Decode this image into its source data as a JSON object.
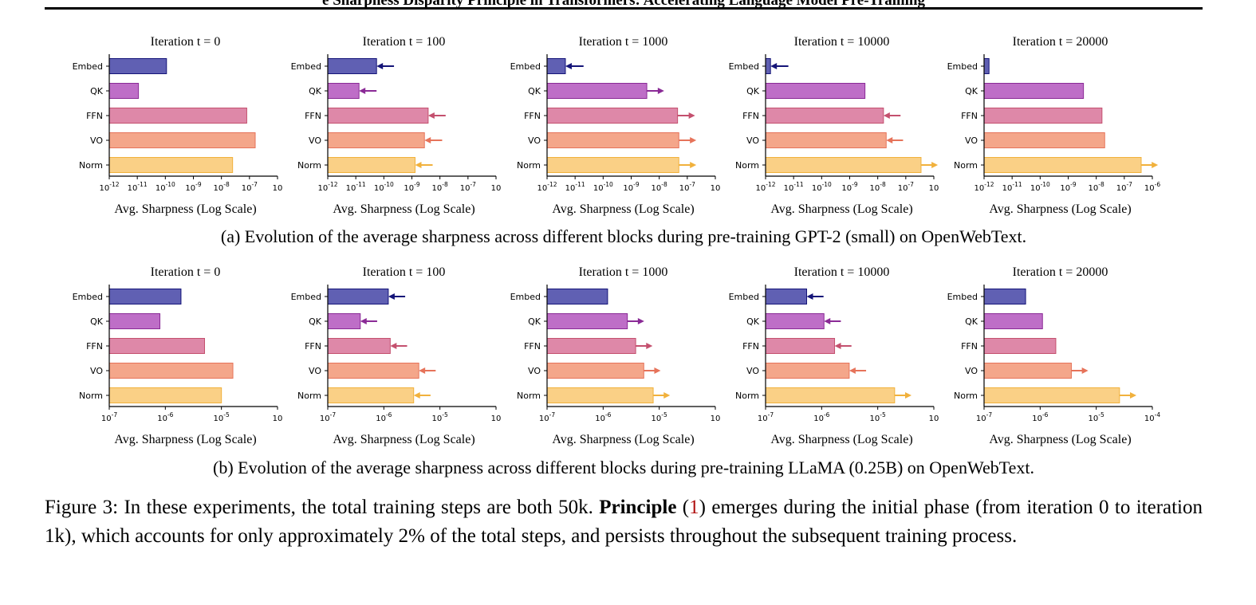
{
  "header": {
    "title_fragment": "e Sharpness Disparity Principle in Transformers: Accelerating Language Model Pre-Training"
  },
  "colors": {
    "Embed": "#4a4aa8",
    "QK": "#b55abf",
    "FFN": "#d9779c",
    "VO": "#f29a7a",
    "Norm": "#f9c975",
    "Embed_arrow": "#141478",
    "QK_arrow": "#8a2a96",
    "FFN_arrow": "#c4506e",
    "VO_arrow": "#e6735a",
    "Norm_arrow": "#f1b13c"
  },
  "captions": {
    "a": "(a) Evolution of the average sharpness across different blocks during pre-training GPT-2 (small) on OpenWebText.",
    "b": "(b) Evolution of the average sharpness across different blocks during pre-training LLaMA (0.25B) on OpenWebText.",
    "figure_label": "Figure 3:",
    "figure_text_1": " In these experiments, the total training steps are both 50k. ",
    "principle_bold": "Principle",
    "principle_open": " (",
    "principle_ref": "1",
    "figure_text_2": ") emerges during the initial phase (from iteration 0 to iteration 1k), which accounts for only approximately 2% of the total steps, and persists throughout the subsequent training process."
  },
  "chart_data": [
    {
      "type": "bar",
      "orientation": "horizontal",
      "row": "a",
      "col": 0,
      "title": "Iteration t = 0",
      "xlabel": "Avg. Sharpness (Log Scale)",
      "xscale": "log",
      "categories": [
        "Embed",
        "QK",
        "FFN",
        "VO",
        "Norm"
      ],
      "xlim_exp": [
        -12,
        -6
      ],
      "xtick_labels": [
        "10^-12",
        "10^-11",
        "10^-10",
        "10^-9",
        "10^-8",
        "10^-7",
        "10"
      ],
      "values": [
        1.1e-10,
        1.1e-11,
        8e-08,
        1.6e-07,
        2.5e-08
      ],
      "arrows": [
        null,
        null,
        null,
        null,
        null
      ]
    },
    {
      "type": "bar",
      "orientation": "horizontal",
      "row": "a",
      "col": 1,
      "title": "Iteration t = 100",
      "xlabel": "Avg. Sharpness (Log Scale)",
      "xscale": "log",
      "categories": [
        "Embed",
        "QK",
        "FFN",
        "VO",
        "Norm"
      ],
      "xlim_exp": [
        -12,
        -6
      ],
      "xtick_labels": [
        "10^-12",
        "10^-11",
        "10^-10",
        "10^-9",
        "10^-8",
        "10^-7",
        "10"
      ],
      "values": [
        5.5e-11,
        1.3e-11,
        3.8e-09,
        2.8e-09,
        1.3e-09
      ],
      "arrows": [
        {
          "from": 2.3e-10,
          "to": 5.5e-11
        },
        {
          "from": 5.5e-11,
          "to": 1.3e-11
        },
        {
          "from": 1.6e-08,
          "to": 3.8e-09
        },
        {
          "from": 1.2e-08,
          "to": 2.8e-09
        },
        {
          "from": 5.5e-09,
          "to": 1.3e-09
        }
      ]
    },
    {
      "type": "bar",
      "orientation": "horizontal",
      "row": "a",
      "col": 2,
      "title": "Iteration t = 1000",
      "xlabel": "Avg. Sharpness (Log Scale)",
      "xscale": "log",
      "categories": [
        "Embed",
        "QK",
        "FFN",
        "VO",
        "Norm"
      ],
      "xlim_exp": [
        -12,
        -6
      ],
      "xtick_labels": [
        "10^-12",
        "10^-11",
        "10^-10",
        "10^-9",
        "10^-8",
        "10^-7",
        "10"
      ],
      "values": [
        4.5e-12,
        3.6e-09,
        4.5e-08,
        5e-08,
        5e-08
      ],
      "arrows": [
        {
          "from": 2e-11,
          "to": 4.5e-12
        },
        {
          "from": 3.6e-09,
          "to": 1.5e-08
        },
        {
          "from": 4.5e-08,
          "to": 1.9e-07
        },
        {
          "from": 5e-08,
          "to": 2.1e-07
        },
        {
          "from": 5e-08,
          "to": 2.1e-07
        }
      ]
    },
    {
      "type": "bar",
      "orientation": "horizontal",
      "row": "a",
      "col": 3,
      "title": "Iteration t = 10000",
      "xlabel": "Avg. Sharpness (Log Scale)",
      "xscale": "log",
      "categories": [
        "Embed",
        "QK",
        "FFN",
        "VO",
        "Norm"
      ],
      "xlim_exp": [
        -12,
        -6
      ],
      "xtick_labels": [
        "10^-12",
        "10^-11",
        "10^-10",
        "10^-9",
        "10^-8",
        "10^-7",
        "10"
      ],
      "values": [
        1.5e-12,
        3.5e-09,
        1.6e-08,
        2e-08,
        3.5e-07
      ],
      "arrows": [
        {
          "from": 6.5e-12,
          "to": 1.5e-12
        },
        {
          "from": null,
          "to": null
        },
        {
          "from": 6.5e-08,
          "to": 1.6e-08
        },
        {
          "from": 8e-08,
          "to": 2e-08
        },
        {
          "from": 3.5e-07,
          "to": 1.4e-06
        }
      ]
    },
    {
      "type": "bar",
      "orientation": "horizontal",
      "row": "a",
      "col": 4,
      "title": "Iteration t = 20000",
      "xlabel": "Avg. Sharpness (Log Scale)",
      "xscale": "log",
      "categories": [
        "Embed",
        "QK",
        "FFN",
        "VO",
        "Norm"
      ],
      "xlim_exp": [
        -12,
        -6
      ],
      "xtick_labels": [
        "10^-12",
        "10^-11",
        "10^-10",
        "10^-9",
        "10^-8",
        "10^-7",
        "10^-6"
      ],
      "values": [
        1.5e-12,
        3.5e-09,
        1.6e-08,
        2e-08,
        4e-07
      ],
      "arrows": [
        null,
        null,
        null,
        null,
        {
          "from": 4e-07,
          "to": 1.6e-06
        }
      ]
    },
    {
      "type": "bar",
      "orientation": "horizontal",
      "row": "b",
      "col": 0,
      "title": "Iteration t = 0",
      "xlabel": "Avg. Sharpness (Log Scale)",
      "xscale": "log",
      "categories": [
        "Embed",
        "QK",
        "FFN",
        "VO",
        "Norm"
      ],
      "xlim_exp": [
        -7,
        -4
      ],
      "xtick_labels": [
        "10^-7",
        "10^-6",
        "10^-5",
        "10"
      ],
      "values": [
        1.9e-06,
        8e-07,
        5e-06,
        1.6e-05,
        1e-05
      ],
      "arrows": [
        null,
        null,
        null,
        null,
        null
      ]
    },
    {
      "type": "bar",
      "orientation": "horizontal",
      "row": "b",
      "col": 1,
      "title": "Iteration t = 100",
      "xlabel": "Avg. Sharpness (Log Scale)",
      "xscale": "log",
      "categories": [
        "Embed",
        "QK",
        "FFN",
        "VO",
        "Norm"
      ],
      "xlim_exp": [
        -7,
        -4
      ],
      "xtick_labels": [
        "10^-7",
        "10^-6",
        "10^-5",
        "10"
      ],
      "values": [
        1.2e-06,
        3.8e-07,
        1.3e-06,
        4.2e-06,
        3.4e-06
      ],
      "arrows": [
        {
          "from": 2.4e-06,
          "to": 1.2e-06
        },
        {
          "from": 7.6e-07,
          "to": 3.8e-07
        },
        {
          "from": 2.6e-06,
          "to": 1.3e-06
        },
        {
          "from": 8.4e-06,
          "to": 4.2e-06
        },
        {
          "from": 6.8e-06,
          "to": 3.4e-06
        }
      ]
    },
    {
      "type": "bar",
      "orientation": "horizontal",
      "row": "b",
      "col": 2,
      "title": "Iteration t = 1000",
      "xlabel": "Avg. Sharpness (Log Scale)",
      "xscale": "log",
      "categories": [
        "Embed",
        "QK",
        "FFN",
        "VO",
        "Norm"
      ],
      "xlim_exp": [
        -7,
        -4
      ],
      "xtick_labels": [
        "10^-7",
        "10^-6",
        "10^-5",
        "10"
      ],
      "values": [
        1.2e-06,
        2.7e-06,
        3.8e-06,
        5.3e-06,
        7.8e-06
      ],
      "arrows": [
        null,
        {
          "from": 2.7e-06,
          "to": 5.4e-06
        },
        {
          "from": 3.8e-06,
          "to": 7.6e-06
        },
        {
          "from": 5.3e-06,
          "to": 1.06e-05
        },
        {
          "from": 7.8e-06,
          "to": 1.56e-05
        }
      ]
    },
    {
      "type": "bar",
      "orientation": "horizontal",
      "row": "b",
      "col": 3,
      "title": "Iteration t = 10000",
      "xlabel": "Avg. Sharpness (Log Scale)",
      "xscale": "log",
      "categories": [
        "Embed",
        "QK",
        "FFN",
        "VO",
        "Norm"
      ],
      "xlim_exp": [
        -7,
        -4
      ],
      "xtick_labels": [
        "10^-7",
        "10^-6",
        "10^-5",
        "10"
      ],
      "values": [
        5.4e-07,
        1.1e-06,
        1.7e-06,
        3.1e-06,
        2e-05
      ],
      "arrows": [
        {
          "from": 1.08e-06,
          "to": 5.4e-07
        },
        {
          "from": 2.2e-06,
          "to": 1.1e-06
        },
        {
          "from": 3.4e-06,
          "to": 1.7e-06
        },
        {
          "from": 6.2e-06,
          "to": 3.1e-06
        },
        {
          "from": 2e-05,
          "to": 4e-05
        }
      ]
    },
    {
      "type": "bar",
      "orientation": "horizontal",
      "row": "b",
      "col": 4,
      "title": "Iteration t = 20000",
      "xlabel": "Avg. Sharpness (Log Scale)",
      "xscale": "log",
      "categories": [
        "Embed",
        "QK",
        "FFN",
        "VO",
        "Norm"
      ],
      "xlim_exp": [
        -7,
        -4
      ],
      "xtick_labels": [
        "10^-7",
        "10^-6",
        "10^-5",
        "10^-4"
      ],
      "values": [
        5.5e-07,
        1.1e-06,
        1.9e-06,
        3.6e-06,
        2.6e-05
      ],
      "arrows": [
        null,
        null,
        null,
        {
          "from": 3.6e-06,
          "to": 7.2e-06
        },
        {
          "from": 2.6e-05,
          "to": 5.2e-05
        }
      ]
    }
  ]
}
